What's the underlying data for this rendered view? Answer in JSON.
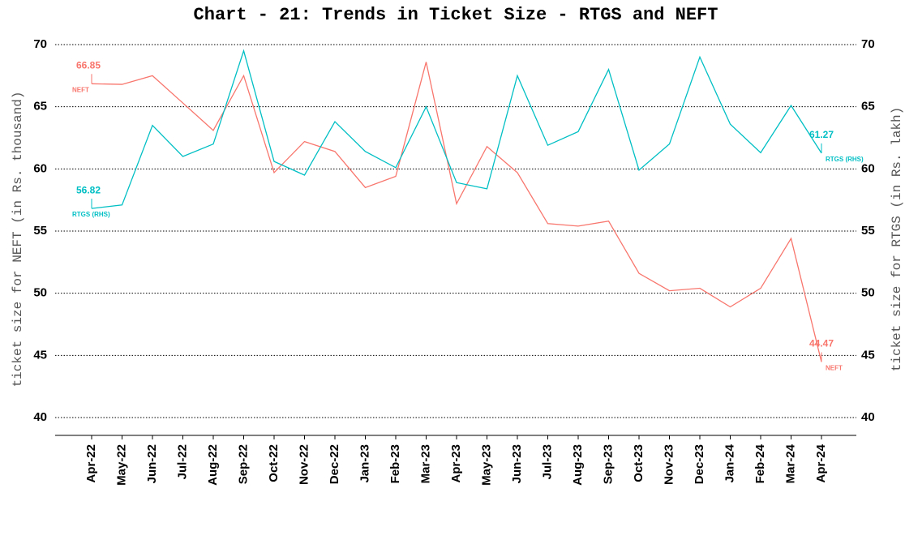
{
  "chart_data": {
    "type": "line",
    "title": "Chart - 21: Trends in Ticket Size - RTGS and NEFT",
    "ylabel": "ticket size for NEFT (in Rs. thousand)",
    "y2label": "ticket size for RTGS (in Rs. lakh)",
    "categories": [
      "Apr-22",
      "May-22",
      "Jun-22",
      "Jul-22",
      "Aug-22",
      "Sep-22",
      "Oct-22",
      "Nov-22",
      "Dec-22",
      "Jan-23",
      "Feb-23",
      "Mar-23",
      "Apr-23",
      "May-23",
      "Jun-23",
      "Jul-23",
      "Aug-23",
      "Sep-23",
      "Oct-23",
      "Nov-23",
      "Dec-23",
      "Jan-24",
      "Feb-24",
      "Mar-24",
      "Apr-24"
    ],
    "series": [
      {
        "name": "NEFT",
        "color": "#f8766d",
        "values": [
          66.85,
          66.8,
          67.5,
          65.3,
          63.1,
          67.5,
          59.7,
          62.2,
          61.4,
          58.5,
          59.4,
          68.6,
          57.2,
          61.8,
          59.7,
          55.6,
          55.4,
          55.8,
          51.6,
          50.2,
          50.4,
          48.9,
          50.4,
          54.4,
          44.47
        ]
      },
      {
        "name": "RTGS (RHS)",
        "color": "#00bfc4",
        "axis": "y2",
        "values": [
          56.82,
          57.1,
          63.5,
          61.0,
          62.0,
          69.5,
          60.6,
          59.5,
          63.8,
          61.4,
          60.1,
          65.0,
          58.9,
          58.4,
          67.5,
          61.9,
          63.0,
          68.0,
          59.9,
          62.0,
          69.0,
          63.6,
          61.3,
          65.1,
          61.27
        ]
      }
    ],
    "ylim": [
      40,
      70
    ],
    "yticks": [
      40,
      45,
      50,
      55,
      60,
      65,
      70
    ],
    "y2lim": [
      40,
      70
    ],
    "y2ticks": [
      40,
      45,
      50,
      55,
      60,
      65,
      70
    ],
    "grid": true
  }
}
